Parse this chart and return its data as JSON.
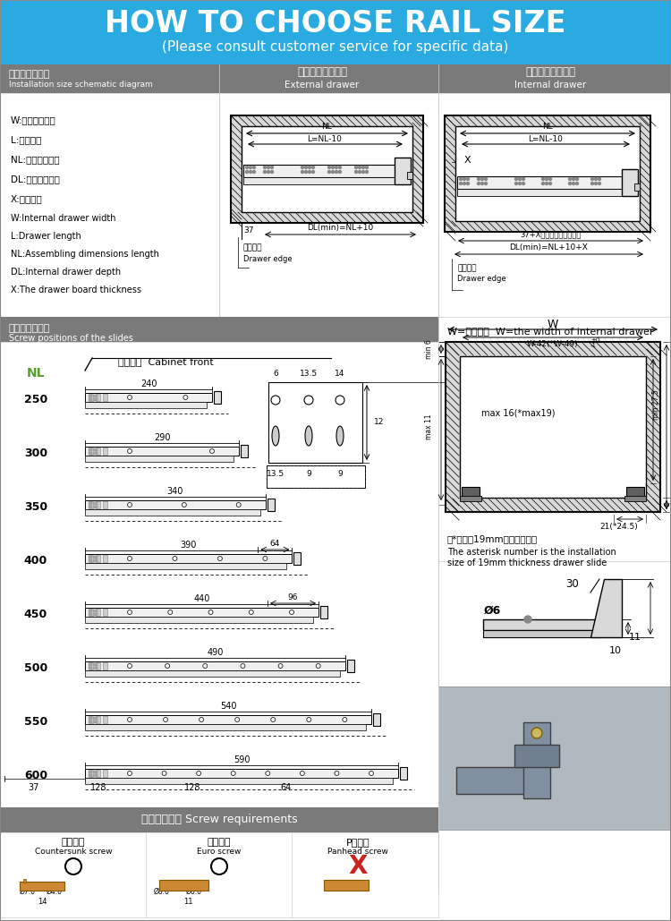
{
  "title_main": "HOW TO CHOOSE RAIL SIZE",
  "title_sub": "(Please consult customer service for specific data)",
  "header_bg": "#29abe2",
  "section_bg": "#7a7a7a",
  "white": "#ffffff",
  "black": "#000000",
  "green_nl": "#5a9e2f",
  "legend_lines_cn": [
    "W:柜子内部宽度",
    "L:抽屉长度",
    "NL:产品规格长度",
    "DL:柜子内部深度",
    "X:面板厚度"
  ],
  "legend_lines_en": [
    "W:Internal drawer width",
    "L:Drawer length",
    "NL:Assembling dimensions length",
    "DL:Internal drawer depth",
    "X:The drawer board thickness"
  ],
  "nl_sizes": [
    250,
    300,
    350,
    400,
    450,
    500,
    550,
    600
  ],
  "rail_lengths": [
    240,
    290,
    340,
    390,
    440,
    490,
    540,
    590
  ],
  "bottom_dimensions": [
    "37",
    "128",
    "128",
    "64"
  ]
}
